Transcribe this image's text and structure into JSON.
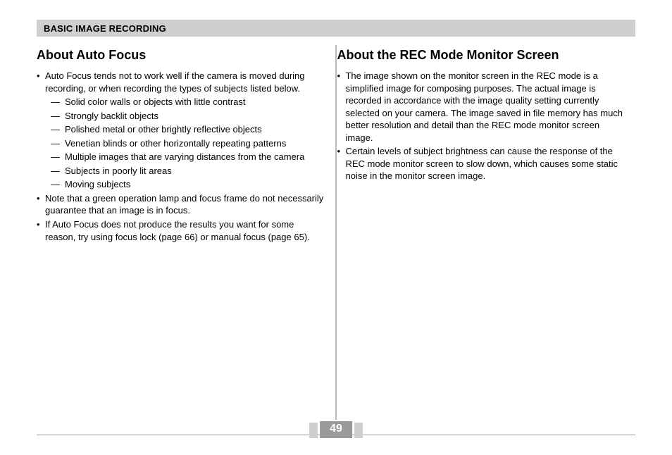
{
  "header": {
    "title": "BASIC IMAGE RECORDING"
  },
  "page_number": "49",
  "left": {
    "heading": "About Auto Focus",
    "bullets": [
      {
        "text": "Auto Focus tends not to work well if the camera is moved during recording, or when recording the types of subjects listed below.",
        "sub": [
          "Solid color walls or objects with little contrast",
          "Strongly backlit objects",
          "Polished metal or other brightly reflective objects",
          "Venetian blinds or other horizontally repeating patterns",
          "Multiple images that are varying distances from the camera",
          "Subjects in poorly lit areas",
          "Moving subjects"
        ]
      },
      {
        "text": "Note that a green operation lamp and focus frame do not necessarily guarantee that an image is in focus."
      },
      {
        "text": "If Auto Focus does not produce the results you want for some reason, try using focus lock (page 66) or manual focus (page 65)."
      }
    ]
  },
  "right": {
    "heading": "About the REC Mode Monitor Screen",
    "bullets": [
      {
        "text": "The image shown on the monitor screen in the REC mode is a simplified image for composing purposes. The actual image is recorded in accordance with the image quality setting currently selected on your camera. The image saved in file memory has much better resolution and detail than the REC mode monitor screen image."
      },
      {
        "text": "Certain levels of subject brightness can cause the response of the REC mode monitor screen to slow down, which causes some static noise in the monitor screen image."
      }
    ]
  }
}
